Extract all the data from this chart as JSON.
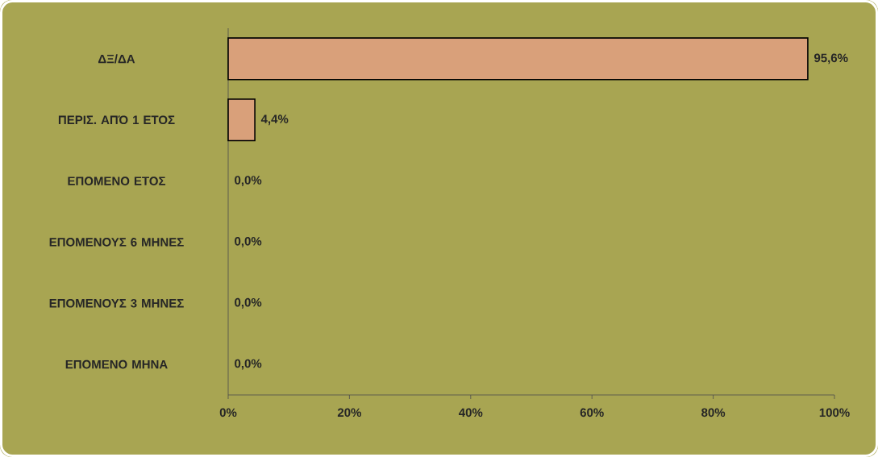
{
  "chart_data": {
    "type": "bar",
    "orientation": "horizontal",
    "categories": [
      "ΔΞ/ΔΑ",
      "ΠΕΡΙΣ. ΑΠΌ 1 ΕΤΟΣ",
      "ΕΠΟΜΕΝΟ ΕΤΟΣ",
      "ΕΠΟΜΕΝΟΥΣ 6 ΜΗΝΕΣ",
      "ΕΠΟΜΕΝΟΥΣ 3 ΜΗΝΕΣ",
      "ΕΠΟΜΕΝΟ ΜΗΝΑ"
    ],
    "values": [
      95.6,
      4.4,
      0,
      0,
      0,
      0
    ],
    "value_labels": [
      "95,6%",
      "4,4%",
      "0,0%",
      "0,0%",
      "0,0%",
      "0,0%"
    ],
    "color": "#d9a07a",
    "xlim": [
      0,
      100
    ],
    "xticks": [
      {
        "value": 0,
        "label": "0%"
      },
      {
        "value": 20,
        "label": "20%"
      },
      {
        "value": 40,
        "label": "40%"
      },
      {
        "value": 60,
        "label": "60%"
      },
      {
        "value": 80,
        "label": "80%"
      },
      {
        "value": 100,
        "label": "100%"
      }
    ]
  }
}
